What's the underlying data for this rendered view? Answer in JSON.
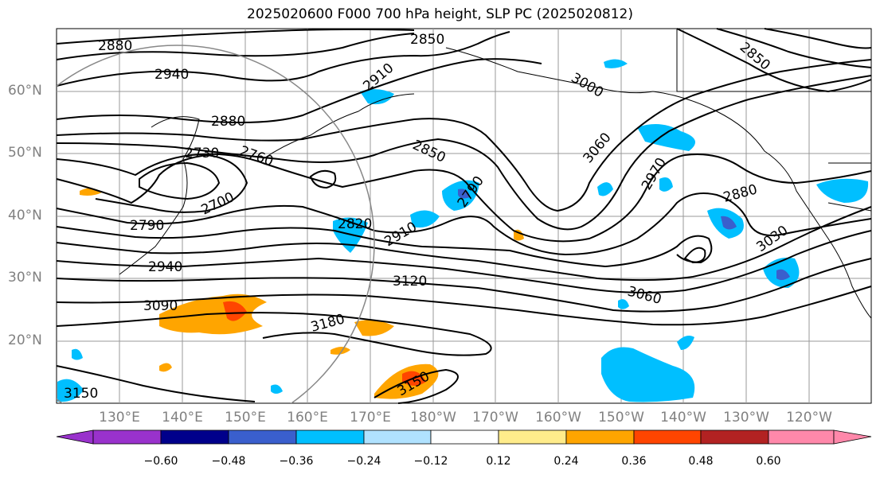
{
  "title": "2025020600 F000 700 hPa height, SLP PC (2025020812)",
  "lat_labels": [
    "60°N",
    "50°N",
    "40°N",
    "30°N",
    "20°N"
  ],
  "lon_labels": [
    "130°E",
    "140°E",
    "150°E",
    "160°E",
    "170°E",
    "180°W",
    "170°W",
    "160°W",
    "150°W",
    "140°W",
    "130°W",
    "120°W"
  ],
  "height_contour_labels": [
    "2880",
    "2850",
    "2940",
    "2910",
    "3000",
    "2850",
    "2880",
    "2730",
    "2760",
    "2850",
    "3060",
    "2970",
    "2700",
    "2790",
    "2790",
    "2820",
    "2910",
    "2880",
    "3030",
    "2940",
    "3120",
    "3060",
    "3090",
    "3180",
    "3150",
    "3150"
  ],
  "colorbar": {
    "ticks": [
      "−0.60",
      "−0.48",
      "−0.36",
      "−0.24",
      "−0.12",
      "0.12",
      "0.24",
      "0.36",
      "0.48",
      "0.60"
    ],
    "colors": [
      "#9932cc",
      "#00008b",
      "#3a5fcd",
      "#00bfff",
      "#b0e2ff",
      "#ffffff",
      "#ffec8b",
      "#ffa500",
      "#ff4500",
      "#b22222",
      "#ff88aa"
    ]
  }
}
